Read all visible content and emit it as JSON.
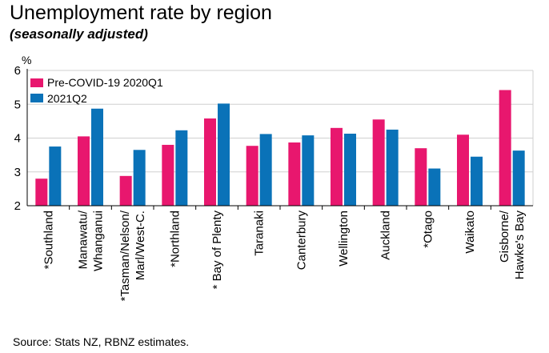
{
  "title": "Unemployment rate by region",
  "subtitle": "(seasonally adjusted)",
  "source": "Source: Stats NZ, RBNZ estimates.",
  "chart_data": {
    "type": "bar",
    "ylabel": "%",
    "ylim": [
      2,
      6
    ],
    "yticks": [
      2,
      3,
      4,
      5,
      6
    ],
    "grid": true,
    "legend_position": "top-left",
    "categories": [
      [
        "*Southland"
      ],
      [
        "Manawatu/",
        "Whanganui"
      ],
      [
        "*Tasman/Nelson/",
        "Marl/West-C."
      ],
      [
        "*Northland"
      ],
      [
        "* Bay of Plenty"
      ],
      [
        "Taranaki"
      ],
      [
        "Canterbury"
      ],
      [
        "Wellington"
      ],
      [
        "Auckland"
      ],
      [
        "*Otago"
      ],
      [
        "Waikato"
      ],
      [
        "Gisborne/",
        "Hawke's Bay"
      ]
    ],
    "series": [
      {
        "name": "Pre-COVID-19 2020Q1",
        "color": "#e8176e",
        "values": [
          2.8,
          4.05,
          2.88,
          3.8,
          4.58,
          3.77,
          3.87,
          4.3,
          4.55,
          3.7,
          4.1,
          5.42
        ]
      },
      {
        "name": "2021Q2",
        "color": "#0a72b8",
        "values": [
          3.75,
          4.87,
          3.65,
          4.23,
          5.02,
          4.12,
          4.08,
          4.13,
          4.25,
          3.1,
          3.45,
          3.63
        ]
      }
    ]
  }
}
